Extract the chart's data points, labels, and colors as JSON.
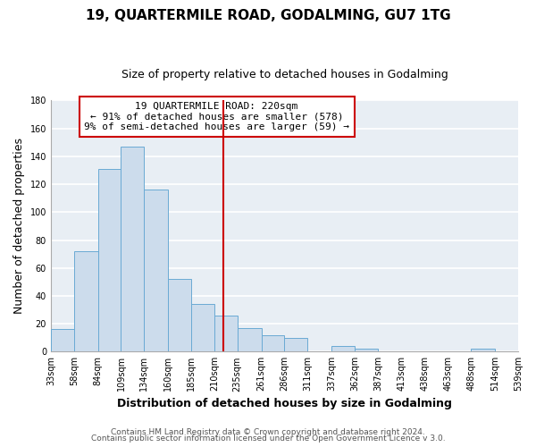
{
  "title": "19, QUARTERMILE ROAD, GODALMING, GU7 1TG",
  "subtitle": "Size of property relative to detached houses in Godalming",
  "xlabel": "Distribution of detached houses by size in Godalming",
  "ylabel": "Number of detached properties",
  "bar_color": "#ccdcec",
  "bar_edge_color": "#6aaad4",
  "bin_labels": [
    "33sqm",
    "58sqm",
    "84sqm",
    "109sqm",
    "134sqm",
    "160sqm",
    "185sqm",
    "210sqm",
    "235sqm",
    "261sqm",
    "286sqm",
    "311sqm",
    "337sqm",
    "362sqm",
    "387sqm",
    "413sqm",
    "438sqm",
    "463sqm",
    "488sqm",
    "514sqm",
    "539sqm"
  ],
  "bar_heights": [
    16,
    72,
    131,
    147,
    116,
    52,
    34,
    26,
    17,
    12,
    10,
    0,
    4,
    2,
    0,
    0,
    0,
    0,
    2,
    0
  ],
  "bin_edges": [
    33,
    58,
    84,
    109,
    134,
    160,
    185,
    210,
    235,
    261,
    286,
    311,
    337,
    362,
    387,
    413,
    438,
    463,
    488,
    514,
    539
  ],
  "vline_x": 220,
  "vline_color": "#cc0000",
  "annotation_title": "19 QUARTERMILE ROAD: 220sqm",
  "annotation_line1": "← 91% of detached houses are smaller (578)",
  "annotation_line2": "9% of semi-detached houses are larger (59) →",
  "annotation_box_color": "#ffffff",
  "annotation_box_edge": "#cc0000",
  "ylim": [
    0,
    180
  ],
  "yticks": [
    0,
    20,
    40,
    60,
    80,
    100,
    120,
    140,
    160,
    180
  ],
  "footer1": "Contains HM Land Registry data © Crown copyright and database right 2024.",
  "footer2": "Contains public sector information licensed under the Open Government Licence v 3.0.",
  "background_color": "#ffffff",
  "plot_bg_color": "#e8eef4",
  "grid_color": "#ffffff",
  "title_fontsize": 11,
  "subtitle_fontsize": 9,
  "axis_label_fontsize": 9,
  "tick_fontsize": 7,
  "footer_fontsize": 6.5,
  "annotation_fontsize": 8
}
